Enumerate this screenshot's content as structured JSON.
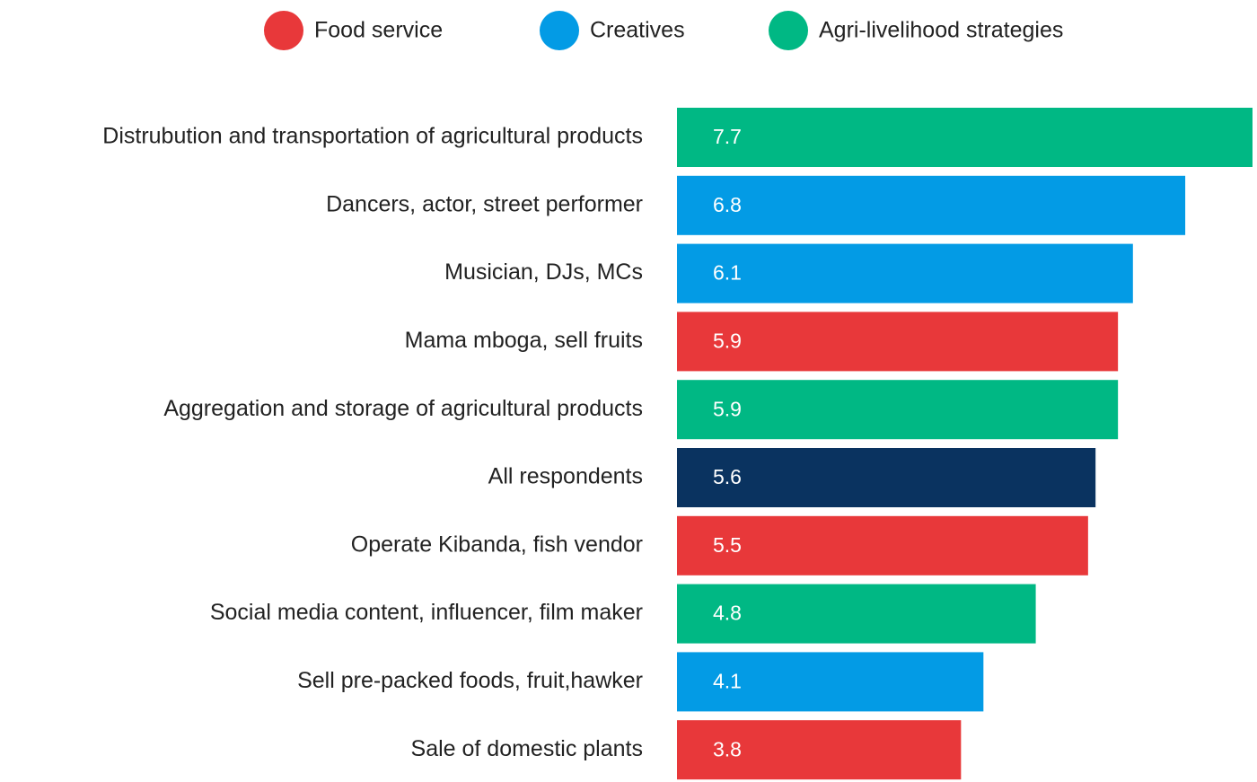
{
  "chart_data": {
    "type": "bar",
    "orientation": "horizontal",
    "legend": [
      {
        "name": "Food service",
        "color": "#e8383a"
      },
      {
        "name": "Creatives",
        "color": "#039be5"
      },
      {
        "name": "Agri-livelihood strategies",
        "color": "#00b884"
      }
    ],
    "categories": [
      "Distrubution and transportation of agricultural products",
      "Dancers, actor, street performer",
      "Musician, DJs, MCs",
      "Mama mboga, sell fruits",
      "Aggregation and storage of agricultural products",
      "All respondents",
      "Operate Kibanda, fish vendor",
      "Social media content, influencer, film maker",
      "Sell pre-packed foods, fruit,hawker",
      "Sale of domestic plants"
    ],
    "values": [
      7.7,
      6.8,
      6.1,
      5.9,
      5.9,
      5.6,
      5.5,
      4.8,
      4.1,
      3.8
    ],
    "colors": [
      "#00b884",
      "#039be5",
      "#039be5",
      "#e8383a",
      "#00b884",
      "#0a3360",
      "#e8383a",
      "#00b884",
      "#039be5",
      "#e8383a"
    ]
  }
}
